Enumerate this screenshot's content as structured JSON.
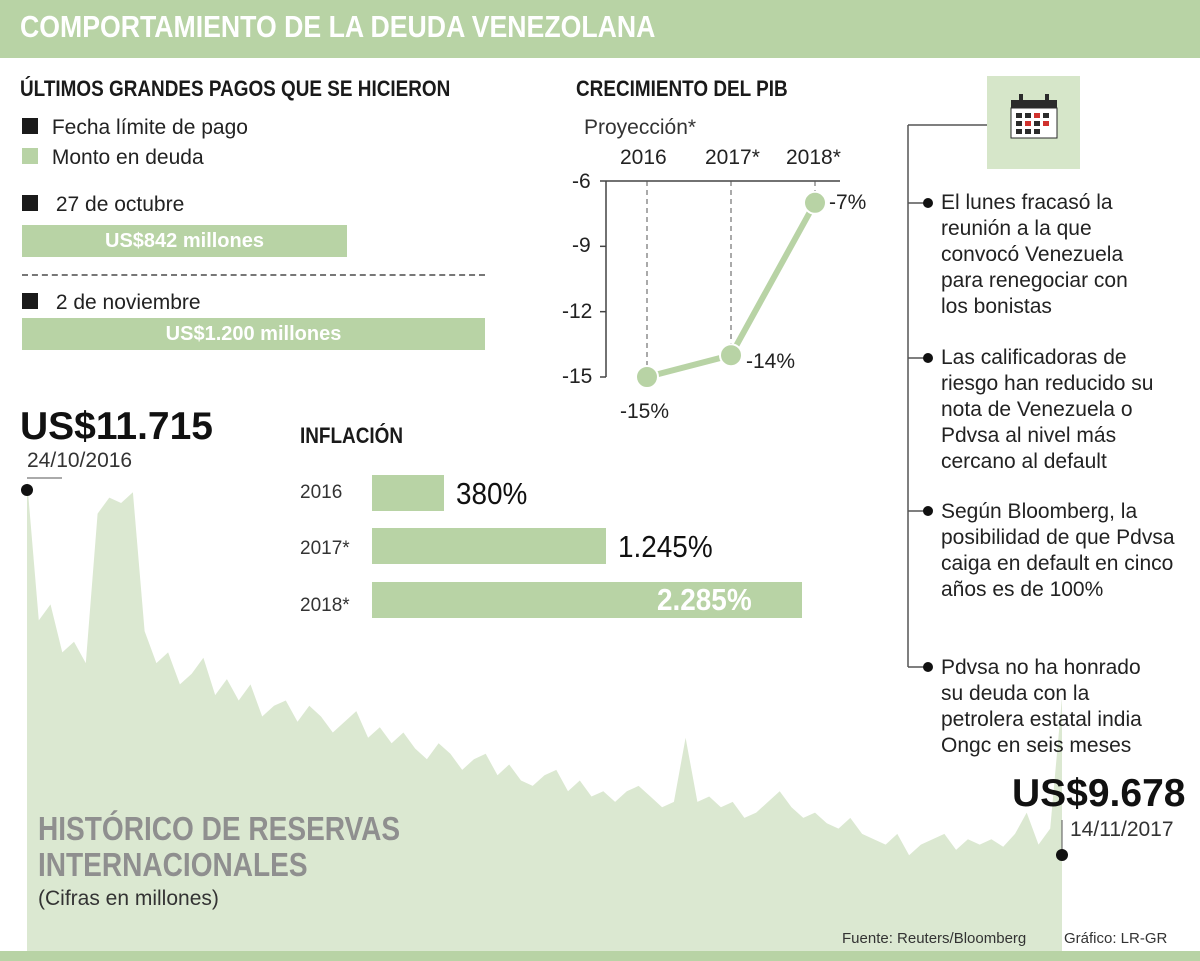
{
  "title": "COMPORTAMIENTO DE LA DEUDA VENEZOLANA",
  "colors": {
    "accent": "#b8d3a5",
    "area": "#dbe8d1",
    "dark": "#1a1a1a"
  },
  "payments": {
    "title": "ÚLTIMOS GRANDES PAGOS QUE SE HICIERON",
    "legend": [
      {
        "label": "Fecha límite de pago",
        "color": "#1a1a1a"
      },
      {
        "label": "Monto en deuda",
        "color": "#b8d3a5"
      }
    ],
    "items": [
      {
        "date": "27 de octubre",
        "amount": "US$842 millones",
        "value": 842
      },
      {
        "date": "2 de noviembre",
        "amount": "US$1.200 millones",
        "value": 1200
      }
    ]
  },
  "pib": {
    "title": "CRECIMIENTO DEL PIB",
    "subtitle": "Proyección*",
    "years": [
      "2016",
      "2017*",
      "2018*"
    ],
    "ticks": [
      "-6",
      "-9",
      "-12",
      "-15"
    ],
    "labels": [
      "-15%",
      "-14%",
      "-7%"
    ]
  },
  "inflation": {
    "title": "INFLACIÓN",
    "items": [
      {
        "year": "2016",
        "label": "380%",
        "value": 380
      },
      {
        "year": "2017*",
        "label": "1.245%",
        "value": 1245
      },
      {
        "year": "2018*",
        "label": "2.285%",
        "value": 2285
      }
    ]
  },
  "reserves": {
    "title_line1": "HISTÓRICO DE RESERVAS",
    "title_line2": "INTERNACIONALES",
    "unit": "(Cifras en millones)",
    "start_value": "US$11.715",
    "start_date": "24/10/2016",
    "end_value": "US$9.678",
    "end_date": "14/11/2017"
  },
  "notes": {
    "icon": "calendar-icon",
    "items": [
      "El lunes fracasó la reunión a la que convocó Venezuela para renegociar con los bonistas",
      "Las calificadoras de riesgo han reducido su nota de Venezuela o Pdvsa al nivel más cercano al default",
      "Según Bloomberg, la posibilidad de que Pdvsa caiga en default en cinco años es de 100%",
      "Pdvsa no ha honrado su deuda con la petrolera estatal india Ongc en seis meses"
    ]
  },
  "footer": {
    "source": "Fuente: Reuters/Bloomberg",
    "credit": "Gráfico: LR-GR"
  },
  "chart_data": [
    {
      "type": "bar",
      "title": "ÚLTIMOS GRANDES PAGOS QUE SE HICIERON",
      "categories": [
        "27 de octubre",
        "2 de noviembre"
      ],
      "values": [
        842,
        1200
      ],
      "unit": "millones de US$"
    },
    {
      "type": "line",
      "title": "CRECIMIENTO DEL PIB",
      "subtitle": "Proyección*",
      "x": [
        "2016",
        "2017*",
        "2018*"
      ],
      "series": [
        {
          "values": [
            -15,
            -14,
            -7
          ]
        }
      ],
      "ylim": [
        -15,
        -6
      ],
      "yticks": [
        -6,
        -9,
        -12,
        -15
      ],
      "grid": false
    },
    {
      "type": "bar",
      "orientation": "horizontal",
      "title": "INFLACIÓN",
      "categories": [
        "2016",
        "2017*",
        "2018*"
      ],
      "values": [
        380,
        1245,
        2285
      ],
      "unit": "%"
    },
    {
      "type": "area",
      "title": "HISTÓRICO DE RESERVAS INTERNACIONALES",
      "subtitle": "(Cifras en millones)",
      "x_start": "24/10/2016",
      "x_end": "14/11/2017",
      "start_value": 11715,
      "end_value": 9678,
      "series": [
        {
          "values": [
            11715,
            10400,
            10550,
            10100,
            10200,
            10000,
            11400,
            11550,
            11500,
            11600,
            10300,
            10000,
            10100,
            9800,
            9900,
            10050,
            9700,
            9850,
            9650,
            9800,
            9500,
            9600,
            9650,
            9450,
            9600,
            9500,
            9350,
            9450,
            9550,
            9300,
            9400,
            9250,
            9350,
            9200,
            9100,
            9250,
            9150,
            9000,
            9100,
            9150,
            8950,
            9050,
            8900,
            8850,
            8950,
            9000,
            8800,
            8900,
            8750,
            8800,
            8700,
            8800,
            8850,
            8750,
            8650,
            8700,
            9300,
            8700,
            8750,
            8650,
            8700,
            8550,
            8600,
            8700,
            8800,
            8650,
            8550,
            8600,
            8500,
            8450,
            8550,
            8400,
            8350,
            8300,
            8400,
            8200,
            8300,
            8350,
            8400,
            8250,
            8350,
            8300,
            8350,
            8280,
            8400,
            8600,
            8300,
            8450,
            9678
          ]
        }
      ],
      "grid": false
    }
  ]
}
